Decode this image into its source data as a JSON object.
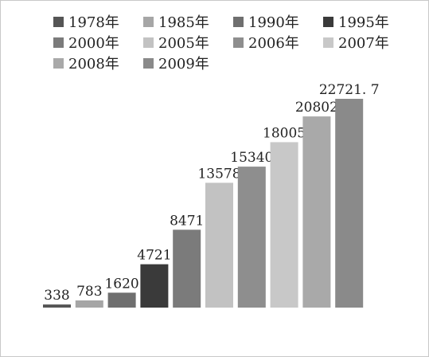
{
  "chart_data": {
    "type": "bar",
    "title": "",
    "xlabel": "",
    "ylabel": "",
    "ylim": [
      0,
      22721.7
    ],
    "grid": false,
    "legend_position": "top",
    "categories": [
      "1978年",
      "1985年",
      "1990年",
      "1995年",
      "2000年",
      "2005年",
      "2006年",
      "2007年",
      "2008年",
      "2009年"
    ],
    "values": [
      338,
      783,
      1620,
      4721,
      8471,
      13578,
      15340,
      18005,
      20802,
      22721.7
    ],
    "value_labels": [
      "338",
      "783",
      "1620",
      "4721",
      "8471",
      "13578",
      "15340",
      "18005",
      "20802",
      "22721. 7"
    ],
    "colors": [
      "#555555",
      "#a6a6a6",
      "#6f6f6f",
      "#3a3a3a",
      "#7b7b7b",
      "#c2c2c2",
      "#8e8e8e",
      "#c8c8c8",
      "#a9a9a9",
      "#8a8a8a"
    ]
  }
}
